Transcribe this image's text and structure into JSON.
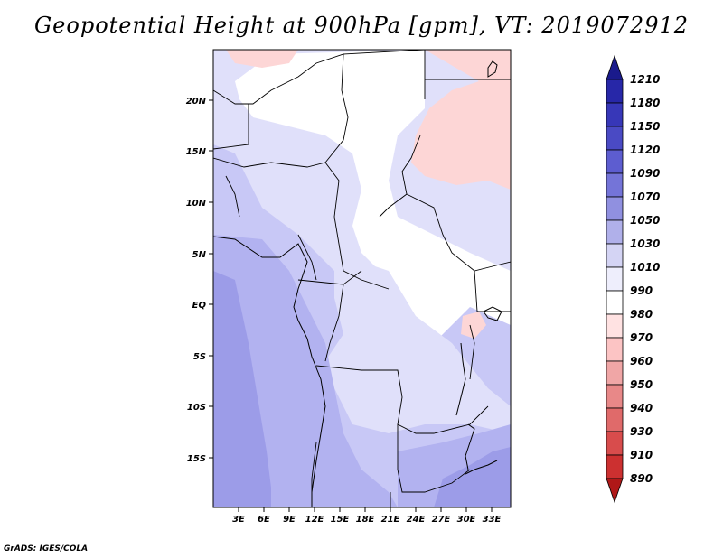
{
  "title": "Geopotential Height at 900hPa [gpm], VT: 2019072912",
  "credit": "GrADS: IGES/COLA",
  "map": {
    "variable": "Geopotential Height",
    "level": "900hPa",
    "units": "gpm",
    "valid_time": "2019072912",
    "lat_ticks": [
      "20N",
      "15N",
      "10N",
      "5N",
      "EQ",
      "5S",
      "10S",
      "15S"
    ],
    "lon_ticks": [
      "3E",
      "6E",
      "9E",
      "12E",
      "15E",
      "18E",
      "21E",
      "24E",
      "27E",
      "30E",
      "33E"
    ]
  },
  "colorbar": {
    "levels": [
      "1210",
      "1180",
      "1150",
      "1120",
      "1090",
      "1070",
      "1050",
      "1030",
      "1010",
      "990",
      "980",
      "970",
      "960",
      "950",
      "940",
      "930",
      "910",
      "890"
    ],
    "colors": [
      "#1a1a8c",
      "#2727a8",
      "#3737b8",
      "#4a4ac4",
      "#5d5dd0",
      "#7474d8",
      "#9090e0",
      "#b0b0ea",
      "#d4d4f4",
      "#ffffff",
      "#ffe2e2",
      "#fcc4c4",
      "#f0a6a6",
      "#e88888",
      "#e06a6a",
      "#d84c4c",
      "#cc3030",
      "#b01818"
    ]
  },
  "fill_colors": {
    "pink": "#fdd6d6",
    "white": "#ffffff",
    "pale": "#e0e0fa",
    "light": "#c8c8f6",
    "mid": "#b2b2f0",
    "deep": "#9c9ce8"
  }
}
